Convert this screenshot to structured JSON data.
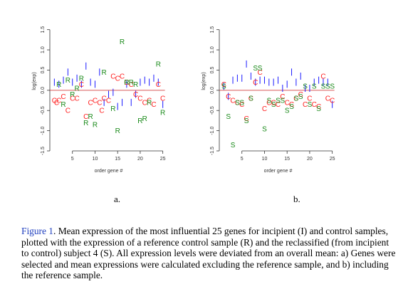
{
  "chart_data": [
    {
      "type": "scatter",
      "panel_label": "a.",
      "xlabel": "order gene #",
      "ylabel": "log(exp)",
      "xlim": [
        0,
        26
      ],
      "ylim": [
        -1.5,
        1.6
      ],
      "xticks": [
        5,
        10,
        15,
        20,
        25
      ],
      "yticks": [
        -1.5,
        -1.0,
        -0.5,
        0.0,
        0.5,
        1.0,
        1.5
      ],
      "ytick_labels": [
        "-1.5",
        "-1.0",
        "-0.5",
        "0.0",
        "0.5",
        "1.0",
        "1.5"
      ],
      "colors": {
        "I": "#1a1aff",
        "C": "#ff2020",
        "R": "#1a8a1a",
        "S": "#1a8a1a",
        "zero_line": "#cc2222"
      },
      "series": [
        {
          "name": "I",
          "marker": "bar",
          "x": [
            1,
            2,
            3,
            4,
            5,
            6,
            7,
            8,
            9,
            10,
            11,
            12,
            13,
            14,
            15,
            16,
            17,
            18,
            19,
            20,
            21,
            22,
            23,
            24,
            25
          ],
          "y": [
            0.2,
            0.15,
            0.25,
            0.45,
            0.2,
            0.3,
            0.15,
            0.6,
            0.2,
            0.15,
            0.45,
            -0.3,
            -0.1,
            -0.05,
            -0.4,
            -0.3,
            0.15,
            -0.3,
            -0.1,
            0.2,
            0.25,
            0.2,
            0.3,
            0.2,
            -0.35
          ]
        },
        {
          "name": "C",
          "marker": "C",
          "x": [
            1,
            1.5,
            2,
            3,
            4,
            5,
            6,
            7,
            8,
            9,
            10,
            11,
            11.5,
            12,
            13,
            14,
            15,
            16,
            17,
            18,
            19,
            20,
            21,
            22,
            23,
            24,
            25
          ],
          "y": [
            -0.25,
            -0.3,
            -0.25,
            -0.15,
            -0.5,
            -0.2,
            -0.2,
            0.15,
            -0.65,
            -0.3,
            -0.25,
            -0.3,
            -0.5,
            -0.2,
            -0.25,
            0.35,
            0.3,
            0.35,
            0.2,
            0.15,
            -0.1,
            -0.2,
            -0.3,
            -0.25,
            -0.35,
            0.15,
            -0.2
          ]
        },
        {
          "name": "R",
          "marker": "R",
          "x": [
            2,
            3,
            4,
            5,
            6,
            7,
            8,
            9,
            10,
            12,
            14,
            15,
            16,
            17,
            18,
            19,
            20,
            21,
            22,
            24,
            25
          ],
          "y": [
            0.15,
            -0.35,
            0.25,
            -0.1,
            0.05,
            0.3,
            -0.8,
            -0.65,
            -0.85,
            0.45,
            -0.45,
            -1.0,
            1.2,
            0.2,
            0.2,
            0.15,
            -0.75,
            -0.7,
            -0.3,
            0.65,
            -0.55
          ]
        }
      ]
    },
    {
      "type": "scatter",
      "panel_label": "b.",
      "xlabel": "order gene #",
      "ylabel": "log(exp)",
      "xlim": [
        0,
        26
      ],
      "ylim": [
        -1.5,
        1.6
      ],
      "xticks": [
        5,
        10,
        15,
        20,
        25
      ],
      "yticks": [
        -1.5,
        -1.0,
        -0.5,
        0.0,
        0.5,
        1.0,
        1.5
      ],
      "ytick_labels": [
        "-1.5",
        "-1.0",
        "-0.5",
        "0.0",
        "0.5",
        "1.0",
        "1.5"
      ],
      "colors": {
        "I": "#1a1aff",
        "C": "#ff2020",
        "R": "#1a8a1a",
        "S": "#1a8a1a",
        "zero_line": "#cc2222"
      },
      "series": [
        {
          "name": "I",
          "marker": "bar",
          "x": [
            1,
            2,
            3,
            4,
            5,
            6,
            7,
            8,
            9,
            10,
            11,
            12,
            13,
            14,
            15,
            16,
            17,
            18,
            19,
            20,
            21,
            22,
            23,
            24,
            25
          ],
          "y": [
            0.1,
            -0.15,
            0.25,
            0.3,
            0.3,
            0.65,
            0.35,
            0.2,
            0.25,
            0.25,
            0.2,
            0.2,
            0.25,
            0.05,
            0.15,
            0.45,
            0.2,
            0.35,
            0.05,
            0.05,
            0.2,
            0.25,
            0.2,
            0.2,
            -0.35
          ]
        },
        {
          "name": "C",
          "marker": "C",
          "x": [
            1,
            2,
            3,
            4,
            5,
            6,
            7,
            8,
            9,
            10,
            11,
            12,
            13,
            14,
            15,
            16,
            17,
            18,
            19,
            20,
            21,
            22,
            23,
            24,
            25
          ],
          "y": [
            0.15,
            -0.15,
            -0.25,
            -0.3,
            -0.35,
            -0.7,
            -0.2,
            0.2,
            0.45,
            -0.45,
            -0.3,
            -0.3,
            -0.35,
            -0.15,
            -0.3,
            -0.35,
            -0.2,
            -0.1,
            -0.35,
            -0.2,
            -0.35,
            -0.4,
            0.35,
            -0.2,
            -0.25
          ]
        },
        {
          "name": "S",
          "marker": "S",
          "x": [
            1,
            2,
            3,
            4,
            5,
            6,
            7,
            8,
            9,
            10,
            11,
            12,
            13,
            14,
            15,
            16,
            17,
            18,
            19,
            20,
            21,
            22,
            23,
            24,
            25
          ],
          "y": [
            0.1,
            -0.65,
            -1.35,
            -0.3,
            -0.3,
            -0.75,
            -0.2,
            0.55,
            0.55,
            -0.95,
            -0.25,
            -0.35,
            -0.25,
            -0.25,
            -0.5,
            -0.4,
            -0.2,
            -0.15,
            0.1,
            -0.35,
            0.1,
            -0.45,
            0.1,
            0.1,
            0.1
          ]
        }
      ]
    }
  ],
  "caption": {
    "title": "Figure 1",
    "text": ". Mean expression of the most influential 25 genes for incipient (I) and control samples, plotted with the expression of a reference control sample (R) and the reclassified (from incipient to control) subject 4 (S). All expression levels were deviated from an overall mean: a) Genes were selected and mean expressions were calculated excluding the reference sample, and b) including the reference sample."
  }
}
